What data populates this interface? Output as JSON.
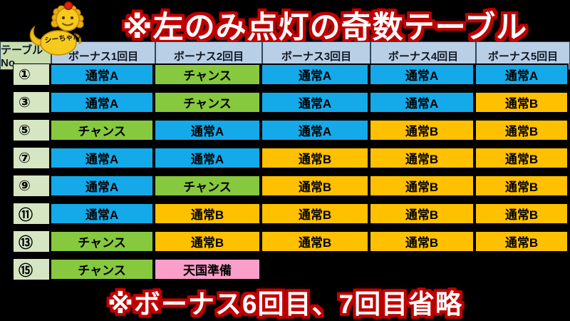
{
  "title": "※左のみ点灯の奇数テーブル",
  "footer": "※ボーナス6回目、7回目省略",
  "mascot": {
    "label": "シーちゃん"
  },
  "table": {
    "headers": [
      "テーブルNo.",
      "ボーナス1回目",
      "ボーナス2回目",
      "ボーナス3回目",
      "ボーナス4回目",
      "ボーナス5回目"
    ],
    "rows": [
      {
        "no": "①",
        "cells": [
          {
            "label": "通常A",
            "type": "normal_a"
          },
          {
            "label": "チャンス",
            "type": "chance"
          },
          {
            "label": "通常A",
            "type": "normal_a"
          },
          {
            "label": "通常A",
            "type": "normal_a"
          },
          {
            "label": "通常A",
            "type": "normal_a"
          }
        ]
      },
      {
        "no": "③",
        "cells": [
          {
            "label": "通常A",
            "type": "normal_a"
          },
          {
            "label": "チャンス",
            "type": "chance"
          },
          {
            "label": "通常A",
            "type": "normal_a"
          },
          {
            "label": "通常A",
            "type": "normal_a"
          },
          {
            "label": "通常B",
            "type": "normal_b"
          }
        ]
      },
      {
        "no": "⑤",
        "cells": [
          {
            "label": "チャンス",
            "type": "chance"
          },
          {
            "label": "通常A",
            "type": "normal_a"
          },
          {
            "label": "通常A",
            "type": "normal_a"
          },
          {
            "label": "通常B",
            "type": "normal_b"
          },
          {
            "label": "通常B",
            "type": "normal_b"
          }
        ]
      },
      {
        "no": "⑦",
        "cells": [
          {
            "label": "通常A",
            "type": "normal_a"
          },
          {
            "label": "通常A",
            "type": "normal_a"
          },
          {
            "label": "通常B",
            "type": "normal_b"
          },
          {
            "label": "通常B",
            "type": "normal_b"
          },
          {
            "label": "通常B",
            "type": "normal_b"
          }
        ]
      },
      {
        "no": "⑨",
        "cells": [
          {
            "label": "通常A",
            "type": "normal_a"
          },
          {
            "label": "チャンス",
            "type": "chance"
          },
          {
            "label": "通常B",
            "type": "normal_b"
          },
          {
            "label": "通常B",
            "type": "normal_b"
          },
          {
            "label": "通常B",
            "type": "normal_b"
          }
        ]
      },
      {
        "no": "⑪",
        "cells": [
          {
            "label": "通常A",
            "type": "normal_a"
          },
          {
            "label": "通常B",
            "type": "normal_b"
          },
          {
            "label": "通常B",
            "type": "normal_b"
          },
          {
            "label": "通常B",
            "type": "normal_b"
          },
          {
            "label": "通常B",
            "type": "normal_b"
          }
        ]
      },
      {
        "no": "⑬",
        "cells": [
          {
            "label": "チャンス",
            "type": "chance"
          },
          {
            "label": "通常B",
            "type": "normal_b"
          },
          {
            "label": "通常B",
            "type": "normal_b"
          },
          {
            "label": "通常B",
            "type": "normal_b"
          },
          {
            "label": "通常B",
            "type": "normal_b"
          }
        ]
      },
      {
        "no": "⑮",
        "cells": [
          {
            "label": "チャンス",
            "type": "chance"
          },
          {
            "label": "天国準備",
            "type": "tengoku_junbi"
          },
          {
            "label": "",
            "type": "empty"
          },
          {
            "label": "",
            "type": "empty"
          },
          {
            "label": "",
            "type": "empty"
          }
        ]
      }
    ]
  },
  "colors": {
    "background": "#000000",
    "title_text": "#ffffff",
    "title_outline": "#c00000",
    "header_fill": "#b9cfe6",
    "header_no_fill": "#c8ddb0",
    "row_no_fill": "#d6e5c2",
    "normal_a": "#14a9e8",
    "chance": "#87c93e",
    "normal_b": "#ffc000",
    "tengoku_junbi": "#f99fc9",
    "cell_text": "#000000"
  },
  "chart_data": {
    "type": "table",
    "title": "※左のみ点灯の奇数テーブル",
    "footnote": "※ボーナス6回目、7回目省略",
    "columns": [
      "テーブルNo.",
      "ボーナス1回目",
      "ボーナス2回目",
      "ボーナス3回目",
      "ボーナス4回目",
      "ボーナス5回目"
    ],
    "rows": [
      [
        "①",
        "通常A",
        "チャンス",
        "通常A",
        "通常A",
        "通常A"
      ],
      [
        "③",
        "通常A",
        "チャンス",
        "通常A",
        "通常A",
        "通常B"
      ],
      [
        "⑤",
        "チャンス",
        "通常A",
        "通常A",
        "通常B",
        "通常B"
      ],
      [
        "⑦",
        "通常A",
        "通常A",
        "通常B",
        "通常B",
        "通常B"
      ],
      [
        "⑨",
        "通常A",
        "チャンス",
        "通常B",
        "通常B",
        "通常B"
      ],
      [
        "⑪",
        "通常A",
        "通常B",
        "通常B",
        "通常B",
        "通常B"
      ],
      [
        "⑬",
        "チャンス",
        "通常B",
        "通常B",
        "通常B",
        "通常B"
      ],
      [
        "⑮",
        "チャンス",
        "天国準備",
        "",
        "",
        ""
      ]
    ],
    "cell_color_map": {
      "通常A": "#14a9e8",
      "チャンス": "#87c93e",
      "通常B": "#ffc000",
      "天国準備": "#f99fc9"
    }
  }
}
